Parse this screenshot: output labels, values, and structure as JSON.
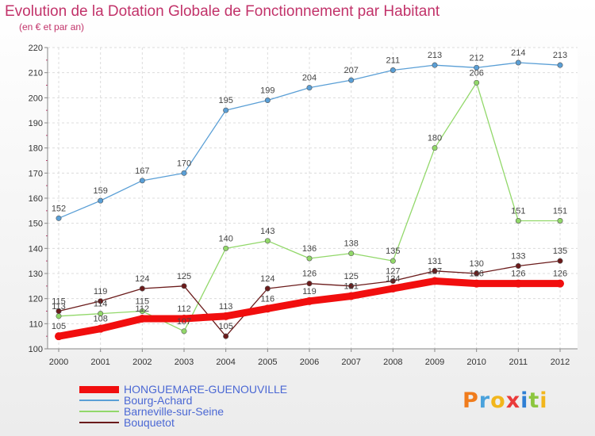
{
  "header": {
    "title": "Evolution de la Dotation Globale de Fonctionnement par Habitant",
    "subtitle": "(en € et par an)"
  },
  "logo": {
    "letters": [
      "P",
      "r",
      "o",
      "x",
      "i",
      "t",
      "i"
    ],
    "colors": [
      "#f07c1c",
      "#4aa2dc",
      "#f2b61c",
      "#ea3a3a",
      "#2f7fd4",
      "#8cc63e",
      "#f2b61c"
    ]
  },
  "chart_data": {
    "type": "line",
    "x": [
      2000,
      2001,
      2002,
      2003,
      2004,
      2005,
      2006,
      2007,
      2008,
      2009,
      2010,
      2011,
      2012
    ],
    "ylim": [
      100,
      220
    ],
    "yticks": [
      100,
      110,
      120,
      130,
      140,
      150,
      160,
      170,
      180,
      190,
      200,
      210,
      220
    ],
    "grid": true,
    "legend_position": "bottom-left",
    "series": [
      {
        "name": "HONGUEMARE-GUENOUVILLE",
        "color": "#f10e0e",
        "stroke": 9,
        "marker": 5,
        "values": [
          105,
          108,
          112,
          112,
          113,
          116,
          119,
          121,
          124,
          127,
          126,
          126,
          126
        ]
      },
      {
        "name": "Bourg-Achard",
        "color": "#5a9fd6",
        "stroke": 1.3,
        "marker": 3.2,
        "values": [
          152,
          159,
          167,
          170,
          195,
          199,
          204,
          207,
          211,
          213,
          212,
          214,
          213
        ]
      },
      {
        "name": "Barneville-sur-Seine",
        "color": "#92d86a",
        "stroke": 1.3,
        "marker": 3.2,
        "values": [
          113,
          114,
          115,
          107,
          140,
          143,
          136,
          138,
          135,
          180,
          206,
          151,
          151
        ]
      },
      {
        "name": "Bouquetot",
        "color": "#6b1b1b",
        "stroke": 1.3,
        "marker": 3.2,
        "values": [
          115,
          119,
          124,
          125,
          105,
          124,
          126,
          125,
          127,
          131,
          130,
          133,
          135
        ]
      }
    ]
  }
}
